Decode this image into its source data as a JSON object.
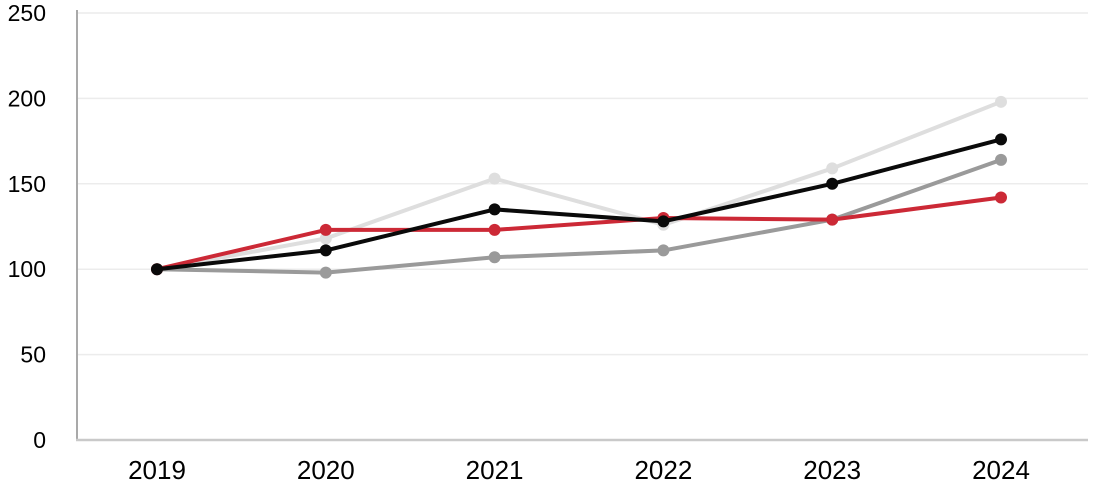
{
  "chart": {
    "background_color": "#ffffff",
    "grid_color": "#ececec",
    "y_axis_line_color": "#a9a9a9",
    "x_axis_line_color": "#c9c9c9",
    "tick_label_color": "#000000"
  },
  "chart_data": {
    "type": "line",
    "title": "",
    "subtitle": "",
    "xlabel": "",
    "ylabel": "",
    "categories": [
      "2019",
      "2020",
      "2021",
      "2022",
      "2023",
      "2024"
    ],
    "series": [
      {
        "name": "light-gray-series",
        "color": "#dedede",
        "values": [
          100,
          118,
          153,
          126,
          159,
          198
        ]
      },
      {
        "name": "gray-series",
        "color": "#9a9a9a",
        "values": [
          100,
          98,
          107,
          111,
          129,
          164
        ]
      },
      {
        "name": "red-series",
        "color": "#cc2936",
        "values": [
          100,
          123,
          123,
          130,
          129,
          142
        ]
      },
      {
        "name": "black-series",
        "color": "#0a0a0a",
        "values": [
          100,
          111,
          135,
          128,
          150,
          176
        ]
      }
    ],
    "yticks": [
      0,
      50,
      100,
      150,
      200,
      250
    ],
    "ylim": [
      0,
      250
    ],
    "grid": true,
    "vertical_grid": false,
    "legend": false,
    "marker": "circle",
    "index_base_note": ""
  }
}
